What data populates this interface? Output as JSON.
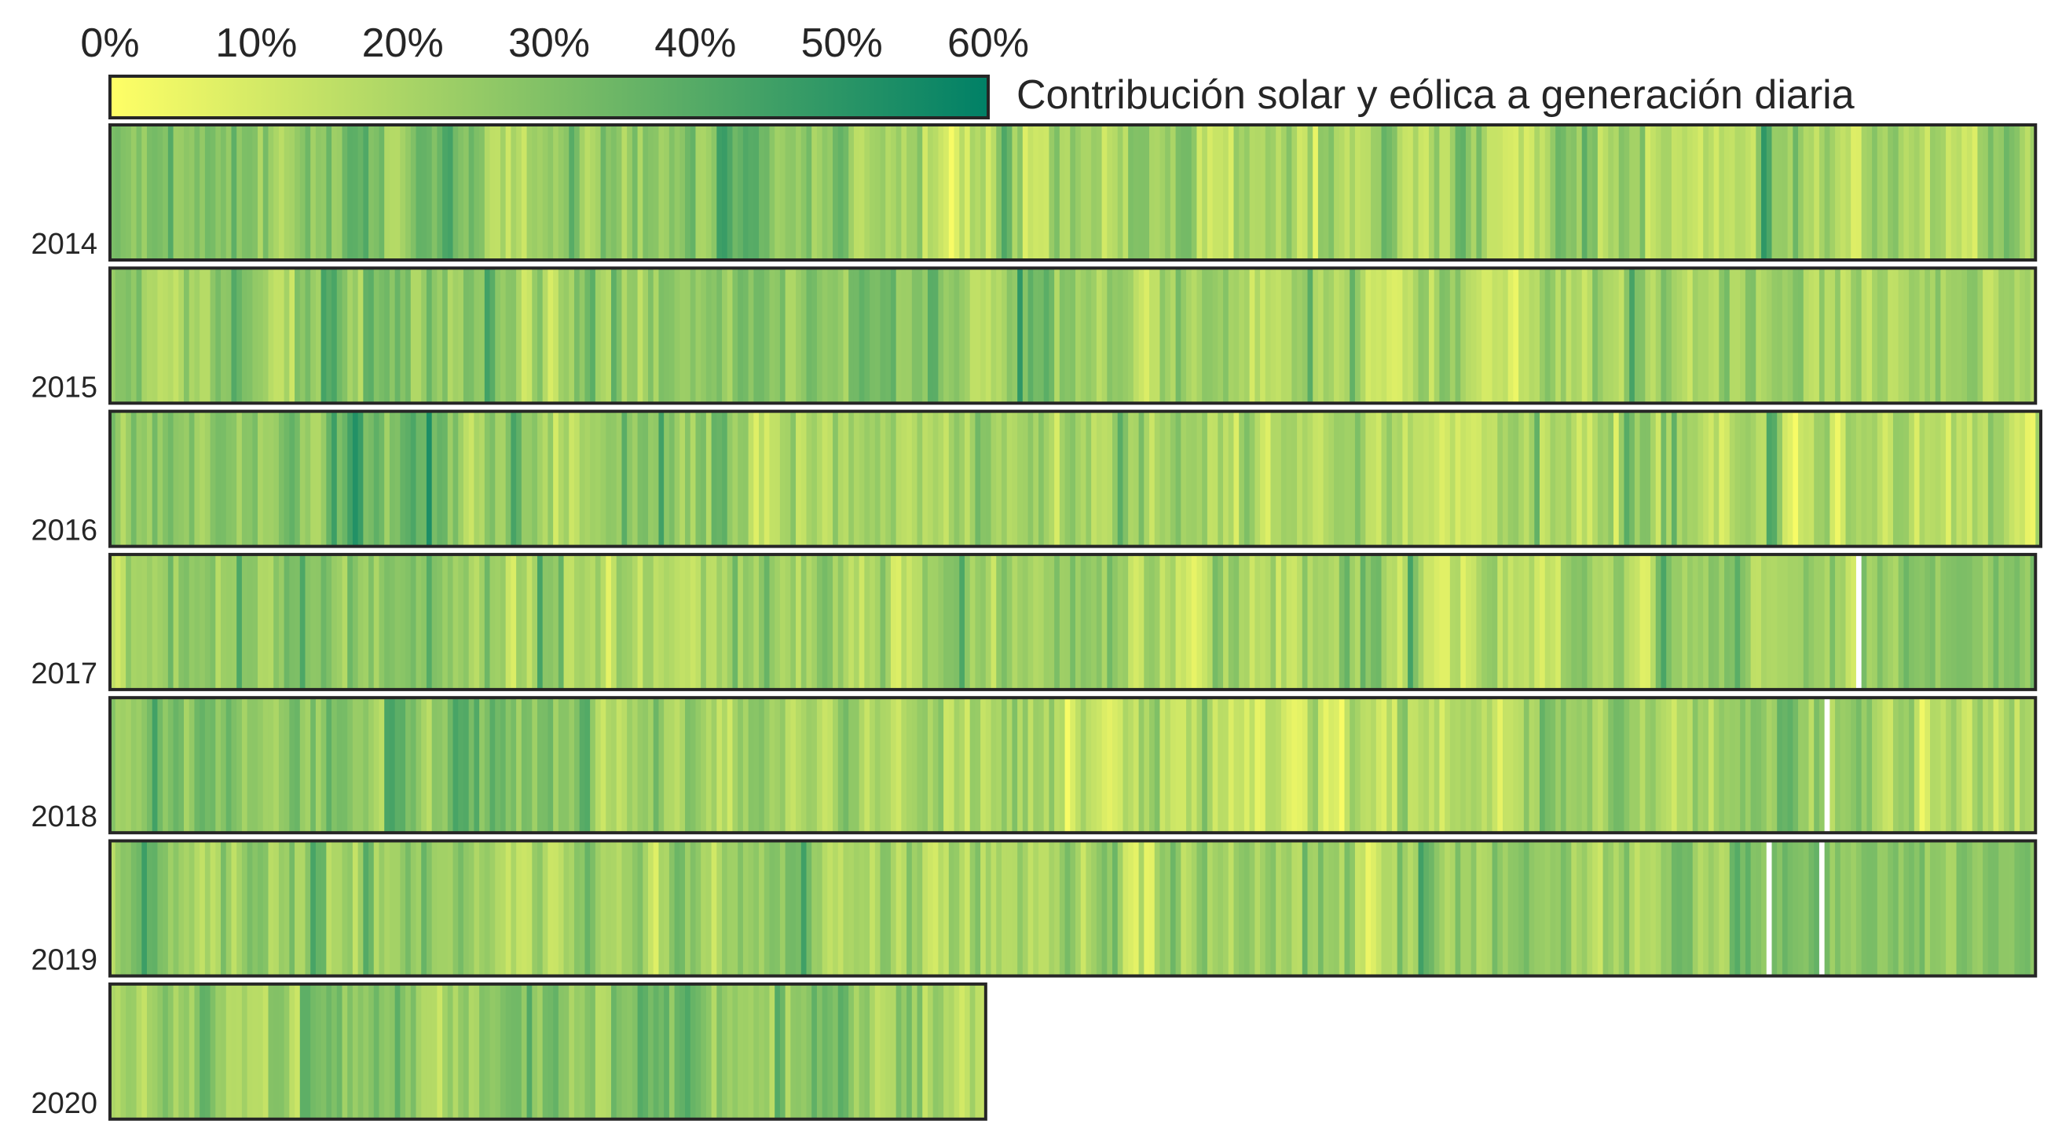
{
  "chart_data": {
    "type": "heatmap",
    "title": "Contribución solar y eólica a generación diaria",
    "colorbar": {
      "ticks": [
        "0%",
        "10%",
        "20%",
        "30%",
        "40%",
        "50%",
        "60%"
      ],
      "min": 0,
      "max": 60,
      "colormap": "summer_r",
      "stops": [
        "#ffff66",
        "#80c066",
        "#008066"
      ]
    },
    "value_unit": "% de generación diaria",
    "rows": [
      {
        "year": "2014",
        "days": 365,
        "months": [
          {
            "m": 1,
            "v": 26
          },
          {
            "m": 2,
            "v": 28
          },
          {
            "m": 3,
            "v": 25
          },
          {
            "m": 4,
            "v": 27
          },
          {
            "m": 5,
            "v": 24
          },
          {
            "m": 6,
            "v": 18
          },
          {
            "m": 7,
            "v": 20
          },
          {
            "m": 8,
            "v": 19
          },
          {
            "m": 9,
            "v": 18
          },
          {
            "m": 10,
            "v": 19
          },
          {
            "m": 11,
            "v": 21
          },
          {
            "m": 12,
            "v": 20
          }
        ],
        "gaps": []
      },
      {
        "year": "2015",
        "days": 365,
        "months": [
          {
            "m": 1,
            "v": 21
          },
          {
            "m": 2,
            "v": 26
          },
          {
            "m": 3,
            "v": 24
          },
          {
            "m": 4,
            "v": 22
          },
          {
            "m": 5,
            "v": 28
          },
          {
            "m": 6,
            "v": 21
          },
          {
            "m": 7,
            "v": 21
          },
          {
            "m": 8,
            "v": 19
          },
          {
            "m": 9,
            "v": 19
          },
          {
            "m": 10,
            "v": 20
          },
          {
            "m": 11,
            "v": 18
          },
          {
            "m": 12,
            "v": 19
          }
        ],
        "gaps": []
      },
      {
        "year": "2016",
        "days": 366,
        "months": [
          {
            "m": 1,
            "v": 30
          },
          {
            "m": 2,
            "v": 31
          },
          {
            "m": 3,
            "v": 22
          },
          {
            "m": 4,
            "v": 24
          },
          {
            "m": 5,
            "v": 22
          },
          {
            "m": 6,
            "v": 20
          },
          {
            "m": 7,
            "v": 19
          },
          {
            "m": 8,
            "v": 18
          },
          {
            "m": 9,
            "v": 17
          },
          {
            "m": 10,
            "v": 17
          },
          {
            "m": 11,
            "v": 18
          },
          {
            "m": 12,
            "v": 17
          }
        ],
        "gaps": []
      },
      {
        "year": "2017",
        "days": 365,
        "months": [
          {
            "m": 1,
            "v": 22
          },
          {
            "m": 2,
            "v": 24
          },
          {
            "m": 3,
            "v": 23
          },
          {
            "m": 4,
            "v": 21
          },
          {
            "m": 5,
            "v": 22
          },
          {
            "m": 6,
            "v": 21
          },
          {
            "m": 7,
            "v": 23
          },
          {
            "m": 8,
            "v": 21
          },
          {
            "m": 9,
            "v": 20
          },
          {
            "m": 10,
            "v": 19
          },
          {
            "m": 11,
            "v": 22
          },
          {
            "m": 12,
            "v": 26
          }
        ],
        "gaps": [
          331
        ]
      },
      {
        "year": "2018",
        "days": 365,
        "months": [
          {
            "m": 1,
            "v": 25
          },
          {
            "m": 2,
            "v": 27
          },
          {
            "m": 3,
            "v": 29
          },
          {
            "m": 4,
            "v": 24
          },
          {
            "m": 5,
            "v": 17
          },
          {
            "m": 6,
            "v": 18
          },
          {
            "m": 7,
            "v": 18
          },
          {
            "m": 8,
            "v": 17
          },
          {
            "m": 9,
            "v": 18
          },
          {
            "m": 10,
            "v": 22
          },
          {
            "m": 11,
            "v": 25
          },
          {
            "m": 12,
            "v": 20
          }
        ],
        "gaps": [
          325
        ]
      },
      {
        "year": "2019",
        "days": 365,
        "months": [
          {
            "m": 1,
            "v": 22
          },
          {
            "m": 2,
            "v": 24
          },
          {
            "m": 3,
            "v": 23
          },
          {
            "m": 4,
            "v": 22
          },
          {
            "m": 5,
            "v": 24
          },
          {
            "m": 6,
            "v": 22
          },
          {
            "m": 7,
            "v": 21
          },
          {
            "m": 8,
            "v": 19
          },
          {
            "m": 9,
            "v": 22
          },
          {
            "m": 10,
            "v": 26
          },
          {
            "m": 11,
            "v": 31
          },
          {
            "m": 12,
            "v": 26
          }
        ],
        "gaps": [
          314,
          324
        ]
      },
      {
        "year": "2020",
        "days": 166,
        "months": [
          {
            "m": 1,
            "v": 22
          },
          {
            "m": 2,
            "v": 26
          },
          {
            "m": 3,
            "v": 25
          },
          {
            "m": 4,
            "v": 27
          },
          {
            "m": 5,
            "v": 26
          },
          {
            "m": 6,
            "v": 22
          }
        ],
        "gaps": []
      }
    ]
  }
}
